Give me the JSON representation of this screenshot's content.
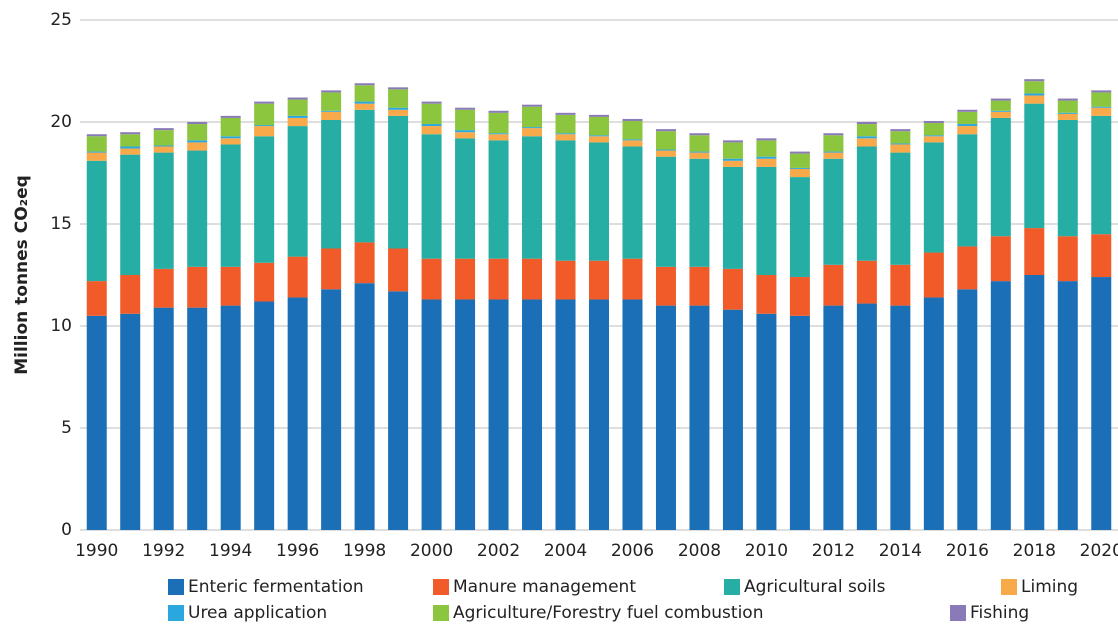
{
  "chart_data": {
    "type": "stacked_bar",
    "y_label": "Million tonnes CO₂eq",
    "categories": [
      "1990",
      null,
      "1992",
      null,
      "1994",
      null,
      "1996",
      null,
      "1998",
      null,
      "2000",
      null,
      "2002",
      null,
      "2004",
      null,
      "2006",
      null,
      "2008",
      null,
      "2010",
      null,
      "2012",
      null,
      "2014",
      null,
      "2016",
      null,
      "2018",
      null,
      "2020"
    ],
    "ylim": [
      0,
      25
    ],
    "yticks": [
      0,
      5,
      10,
      15,
      20,
      25
    ],
    "grid": true,
    "series": [
      {
        "name": "Enteric fermentation",
        "color": "#1b6fb6",
        "values": [
          10.5,
          10.6,
          10.9,
          10.9,
          11.0,
          11.2,
          11.4,
          11.8,
          12.1,
          11.7,
          11.3,
          11.3,
          11.3,
          11.3,
          11.3,
          11.3,
          11.3,
          11.0,
          11.0,
          10.8,
          10.6,
          10.5,
          11.0,
          11.1,
          11.0,
          11.4,
          11.8,
          12.2,
          12.5,
          12.2,
          12.4
        ]
      },
      {
        "name": "Manure management",
        "color": "#f15a29",
        "values": [
          1.7,
          1.9,
          1.9,
          2.0,
          1.9,
          1.9,
          2.0,
          2.0,
          2.0,
          2.1,
          2.0,
          2.0,
          2.0,
          2.0,
          1.9,
          1.9,
          2.0,
          1.9,
          1.9,
          2.0,
          1.9,
          1.9,
          2.0,
          2.1,
          2.0,
          2.2,
          2.1,
          2.2,
          2.3,
          2.2,
          2.1
        ]
      },
      {
        "name": "Agricultural soils",
        "color": "#26ada4",
        "values": [
          5.9,
          5.9,
          5.7,
          5.7,
          6.0,
          6.2,
          6.4,
          6.3,
          6.5,
          6.5,
          6.1,
          5.9,
          5.8,
          6.0,
          5.9,
          5.8,
          5.5,
          5.4,
          5.3,
          5.0,
          5.3,
          4.9,
          5.2,
          5.6,
          5.5,
          5.4,
          5.5,
          5.8,
          6.1,
          5.7,
          5.8
        ]
      },
      {
        "name": "Liming",
        "color": "#f8a94a",
        "values": [
          0.4,
          0.3,
          0.3,
          0.4,
          0.3,
          0.5,
          0.4,
          0.4,
          0.3,
          0.3,
          0.4,
          0.3,
          0.3,
          0.4,
          0.3,
          0.3,
          0.3,
          0.3,
          0.3,
          0.3,
          0.4,
          0.4,
          0.3,
          0.4,
          0.4,
          0.3,
          0.4,
          0.3,
          0.4,
          0.3,
          0.4
        ]
      },
      {
        "name": "Urea application",
        "color": "#2ba7e0",
        "values": [
          0.05,
          0.1,
          0.05,
          0.1,
          0.1,
          0.05,
          0.1,
          0.05,
          0.1,
          0.1,
          0.1,
          0.1,
          0.05,
          0.05,
          0.05,
          0.05,
          0.05,
          0.05,
          0.05,
          0.1,
          0.1,
          0.05,
          0.05,
          0.1,
          0.05,
          0.05,
          0.1,
          0.05,
          0.1,
          0.05,
          0.05
        ]
      },
      {
        "name": "Agriculture/Forestry fuel combustion",
        "color": "#8cc63f",
        "values": [
          0.75,
          0.6,
          0.75,
          0.8,
          0.9,
          1.05,
          0.8,
          0.9,
          0.8,
          0.9,
          1.0,
          1.0,
          1.0,
          1.0,
          0.9,
          0.9,
          0.9,
          0.9,
          0.8,
          0.8,
          0.8,
          0.7,
          0.8,
          0.6,
          0.6,
          0.6,
          0.6,
          0.5,
          0.6,
          0.6,
          0.7
        ]
      },
      {
        "name": "Fishing",
        "color": "#8a7bb8",
        "values": [
          0.1,
          0.1,
          0.1,
          0.1,
          0.1,
          0.1,
          0.1,
          0.1,
          0.1,
          0.1,
          0.1,
          0.1,
          0.1,
          0.1,
          0.1,
          0.1,
          0.1,
          0.1,
          0.1,
          0.1,
          0.1,
          0.1,
          0.1,
          0.1,
          0.1,
          0.1,
          0.1,
          0.1,
          0.1,
          0.1,
          0.1
        ]
      }
    ]
  }
}
